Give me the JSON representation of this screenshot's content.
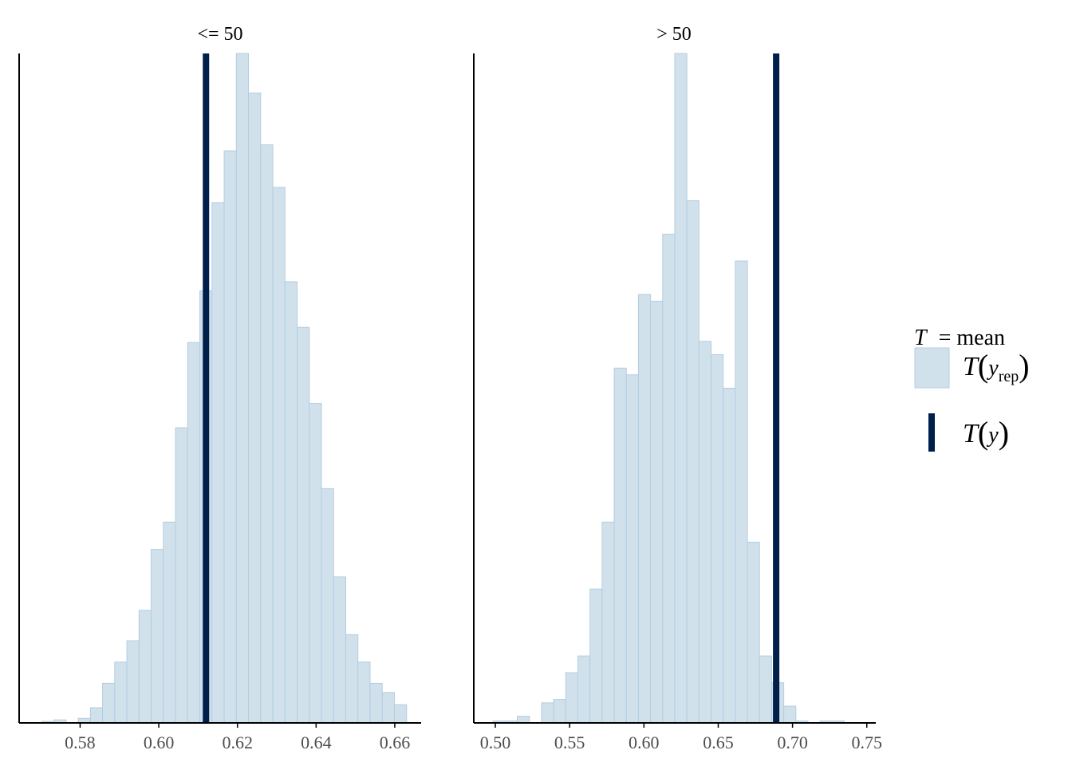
{
  "colors": {
    "bar_fill": "#d1e1ec",
    "bar_stroke": "#b3cde0",
    "observed_line": "#011f4b",
    "axis": "#000000",
    "tick_text": "#4d4d4d"
  },
  "legend": {
    "statistic_var": "T",
    "statistic_eq": "= mean",
    "rep_label_T": "T",
    "rep_label_y": "y",
    "rep_label_sub": "rep",
    "obs_label_T": "T",
    "obs_label_y": "y"
  },
  "chart_data": [
    {
      "type": "histogram",
      "title": "<= 50",
      "xlim": [
        0.5645,
        0.6665
      ],
      "ticks": [
        {
          "value": 0.58,
          "label": "0.58"
        },
        {
          "value": 0.6,
          "label": "0.60"
        },
        {
          "value": 0.62,
          "label": "0.62"
        },
        {
          "value": 0.64,
          "label": "0.64"
        },
        {
          "value": 0.66,
          "label": "0.66"
        }
      ],
      "bin_start": 0.57025,
      "bin_width": 0.0030915,
      "counts": [
        0.5,
        1,
        0,
        1.5,
        5,
        13,
        20,
        27,
        37,
        57,
        66,
        97,
        125,
        142,
        171,
        188,
        220,
        207,
        190,
        176,
        145,
        130,
        105,
        77,
        48,
        29,
        20,
        13,
        10,
        6
      ],
      "observed": 0.612,
      "ylim": [
        0,
        220
      ]
    },
    {
      "type": "histogram",
      "title": "> 50",
      "xlim": [
        0.4855,
        0.7555
      ],
      "ticks": [
        {
          "value": 0.5,
          "label": "0.50"
        },
        {
          "value": 0.55,
          "label": "0.55"
        },
        {
          "value": 0.6,
          "label": "0.60"
        },
        {
          "value": 0.65,
          "label": "0.65"
        },
        {
          "value": 0.7,
          "label": "0.70"
        },
        {
          "value": 0.75,
          "label": "0.75"
        }
      ],
      "bin_start": 0.4985,
      "bin_width": 0.00815,
      "counts": [
        0.3,
        0.3,
        1,
        0,
        3,
        3.5,
        7.5,
        10,
        20,
        30,
        53,
        52,
        64,
        63,
        73,
        100,
        78,
        57,
        55,
        50,
        69,
        27,
        10,
        6,
        2.5,
        0.3,
        0,
        0.3,
        0.3
      ],
      "observed": 0.689,
      "ylim": [
        0,
        100
      ]
    }
  ]
}
